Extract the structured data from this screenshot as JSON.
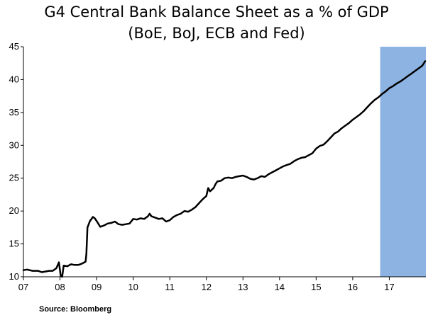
{
  "chart_data": {
    "type": "line",
    "title": "G4 Central Bank Balance Sheet as a % of GDP",
    "subtitle": "(BoE, BoJ, ECB and Fed)",
    "source": "Source: Bloomberg",
    "xlabel": "",
    "ylabel": "",
    "ylim": [
      10,
      45
    ],
    "yticks": [
      10,
      15,
      20,
      25,
      30,
      35,
      40,
      45
    ],
    "xlim": [
      2007.0,
      2018.0
    ],
    "xticks": [
      {
        "label": "07",
        "value": 2007
      },
      {
        "label": "08",
        "value": 2008
      },
      {
        "label": "09",
        "value": 2009
      },
      {
        "label": "10",
        "value": 2010
      },
      {
        "label": "11",
        "value": 2011
      },
      {
        "label": "12",
        "value": 2012
      },
      {
        "label": "13",
        "value": 2013
      },
      {
        "label": "14",
        "value": 2014
      },
      {
        "label": "15",
        "value": 2015
      },
      {
        "label": "16",
        "value": 2016
      },
      {
        "label": "17",
        "value": 2017
      }
    ],
    "grid": false,
    "legend": "none",
    "shaded_region": {
      "x_start": 2016.75,
      "x_end": 2018.0,
      "color": "#8DB3E2"
    },
    "series": [
      {
        "color": "#000000",
        "points": [
          [
            2007.0,
            11.0
          ],
          [
            2007.1,
            11.1
          ],
          [
            2007.25,
            10.9
          ],
          [
            2007.4,
            10.9
          ],
          [
            2007.5,
            10.7
          ],
          [
            2007.6,
            10.8
          ],
          [
            2007.7,
            10.9
          ],
          [
            2007.8,
            10.9
          ],
          [
            2007.9,
            11.3
          ],
          [
            2007.97,
            12.2
          ],
          [
            2008.02,
            10.1
          ],
          [
            2008.06,
            10.0
          ],
          [
            2008.1,
            11.7
          ],
          [
            2008.2,
            11.6
          ],
          [
            2008.3,
            11.9
          ],
          [
            2008.4,
            11.8
          ],
          [
            2008.5,
            11.8
          ],
          [
            2008.6,
            12.0
          ],
          [
            2008.7,
            12.3
          ],
          [
            2008.72,
            13.5
          ],
          [
            2008.75,
            17.5
          ],
          [
            2008.82,
            18.5
          ],
          [
            2008.9,
            19.1
          ],
          [
            2008.95,
            18.9
          ],
          [
            2009.0,
            18.5
          ],
          [
            2009.1,
            17.6
          ],
          [
            2009.2,
            17.8
          ],
          [
            2009.3,
            18.1
          ],
          [
            2009.4,
            18.2
          ],
          [
            2009.5,
            18.4
          ],
          [
            2009.6,
            18.0
          ],
          [
            2009.7,
            17.9
          ],
          [
            2009.8,
            18.0
          ],
          [
            2009.9,
            18.1
          ],
          [
            2010.0,
            18.8
          ],
          [
            2010.1,
            18.7
          ],
          [
            2010.2,
            18.9
          ],
          [
            2010.3,
            18.8
          ],
          [
            2010.4,
            19.2
          ],
          [
            2010.45,
            19.6
          ],
          [
            2010.5,
            19.2
          ],
          [
            2010.6,
            19.0
          ],
          [
            2010.7,
            18.8
          ],
          [
            2010.8,
            18.9
          ],
          [
            2010.9,
            18.4
          ],
          [
            2011.0,
            18.6
          ],
          [
            2011.1,
            19.1
          ],
          [
            2011.2,
            19.4
          ],
          [
            2011.3,
            19.6
          ],
          [
            2011.4,
            20.0
          ],
          [
            2011.5,
            19.9
          ],
          [
            2011.6,
            20.2
          ],
          [
            2011.7,
            20.6
          ],
          [
            2011.8,
            21.2
          ],
          [
            2011.9,
            21.8
          ],
          [
            2012.0,
            22.3
          ],
          [
            2012.05,
            23.5
          ],
          [
            2012.1,
            23.0
          ],
          [
            2012.2,
            23.5
          ],
          [
            2012.25,
            24.1
          ],
          [
            2012.3,
            24.5
          ],
          [
            2012.4,
            24.6
          ],
          [
            2012.5,
            25.0
          ],
          [
            2012.6,
            25.1
          ],
          [
            2012.7,
            25.0
          ],
          [
            2012.8,
            25.2
          ],
          [
            2012.9,
            25.3
          ],
          [
            2013.0,
            25.4
          ],
          [
            2013.1,
            25.2
          ],
          [
            2013.2,
            24.9
          ],
          [
            2013.3,
            24.8
          ],
          [
            2013.4,
            25.0
          ],
          [
            2013.5,
            25.3
          ],
          [
            2013.6,
            25.2
          ],
          [
            2013.7,
            25.6
          ],
          [
            2013.8,
            25.9
          ],
          [
            2013.9,
            26.2
          ],
          [
            2014.0,
            26.5
          ],
          [
            2014.1,
            26.8
          ],
          [
            2014.2,
            27.0
          ],
          [
            2014.3,
            27.2
          ],
          [
            2014.4,
            27.6
          ],
          [
            2014.5,
            27.9
          ],
          [
            2014.6,
            28.1
          ],
          [
            2014.7,
            28.2
          ],
          [
            2014.8,
            28.5
          ],
          [
            2014.9,
            28.8
          ],
          [
            2015.0,
            29.5
          ],
          [
            2015.1,
            29.9
          ],
          [
            2015.2,
            30.1
          ],
          [
            2015.3,
            30.6
          ],
          [
            2015.4,
            31.2
          ],
          [
            2015.5,
            31.8
          ],
          [
            2015.6,
            32.1
          ],
          [
            2015.7,
            32.6
          ],
          [
            2015.8,
            33.0
          ],
          [
            2015.9,
            33.4
          ],
          [
            2016.0,
            33.9
          ],
          [
            2016.1,
            34.3
          ],
          [
            2016.2,
            34.7
          ],
          [
            2016.3,
            35.2
          ],
          [
            2016.4,
            35.8
          ],
          [
            2016.5,
            36.4
          ],
          [
            2016.6,
            36.9
          ],
          [
            2016.7,
            37.3
          ],
          [
            2016.8,
            37.8
          ],
          [
            2016.9,
            38.2
          ],
          [
            2017.0,
            38.7
          ],
          [
            2017.1,
            39.0
          ],
          [
            2017.2,
            39.4
          ],
          [
            2017.3,
            39.7
          ],
          [
            2017.4,
            40.1
          ],
          [
            2017.5,
            40.5
          ],
          [
            2017.6,
            40.9
          ],
          [
            2017.7,
            41.3
          ],
          [
            2017.8,
            41.7
          ],
          [
            2017.9,
            42.1
          ],
          [
            2017.98,
            42.8
          ]
        ]
      }
    ]
  }
}
